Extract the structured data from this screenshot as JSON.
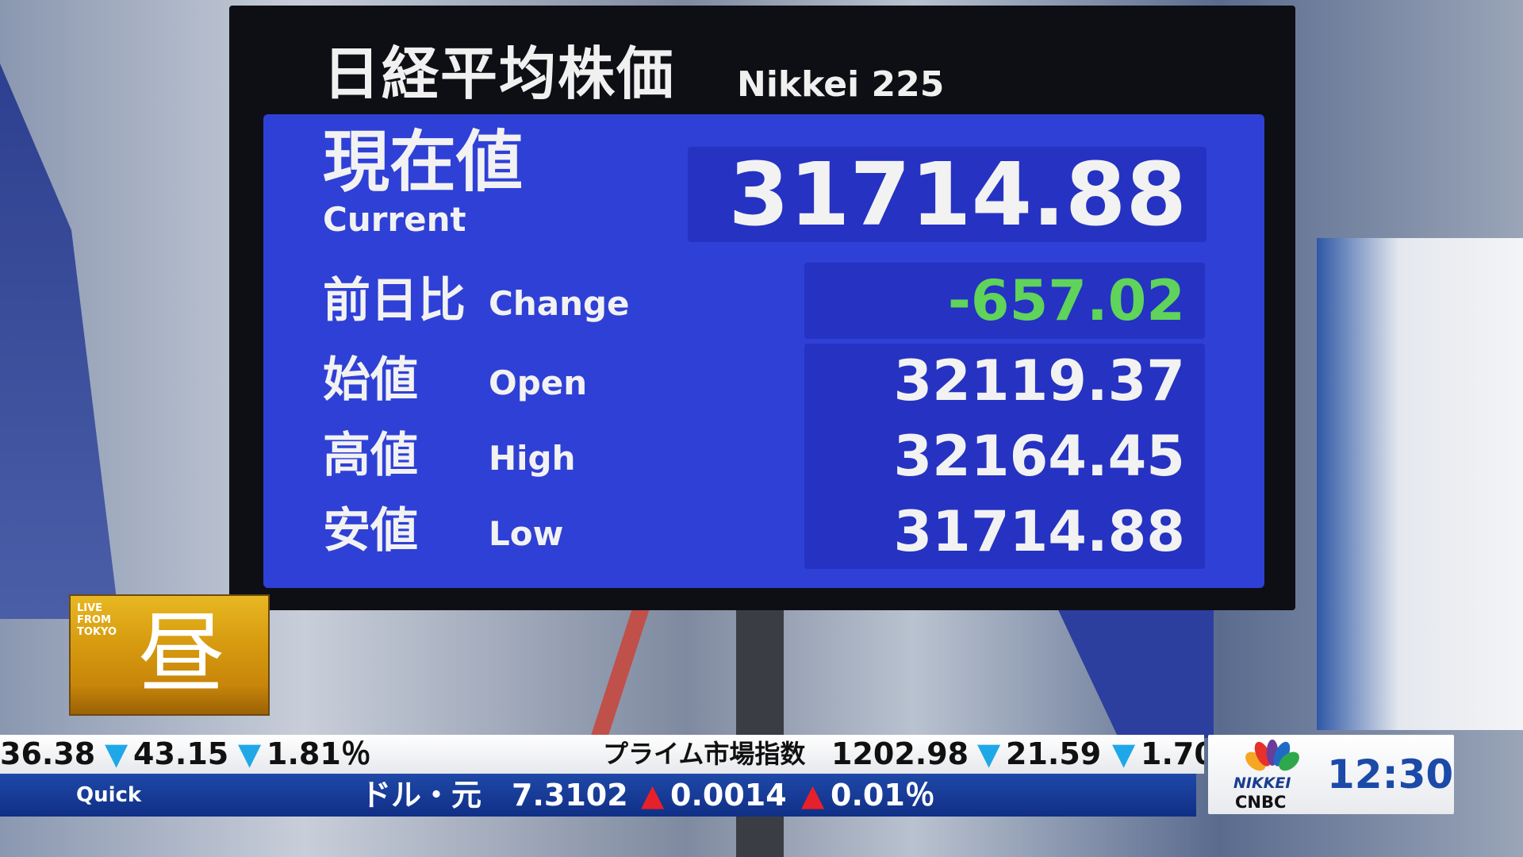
{
  "board": {
    "title_jp": "日経平均株価",
    "title_en": "Nikkei 225",
    "current": {
      "label_jp": "現在値",
      "label_en": "Current",
      "value": "31714.88"
    },
    "change": {
      "label_jp": "前日比",
      "label_en": "Change",
      "value": "-657.02",
      "color": "#5fd35a"
    },
    "open": {
      "label_jp": "始値",
      "label_en": "Open",
      "value": "32119.37"
    },
    "high": {
      "label_jp": "高値",
      "label_en": "High",
      "value": "32164.45"
    },
    "low": {
      "label_jp": "安値",
      "label_en": "Low",
      "value": "31714.88"
    }
  },
  "badge": {
    "live": "LIVE",
    "from": "FROM",
    "tokyo": "TOKYO",
    "kanji": "昼"
  },
  "ticker": {
    "top": [
      {
        "t": "36.38"
      },
      {
        "t": "▼",
        "c": "down"
      },
      {
        "t": "43.15"
      },
      {
        "t": "▼",
        "c": "down"
      },
      {
        "t": "1.81％"
      },
      {
        "t": "プライム市場指数"
      },
      {
        "t": "1202.98"
      },
      {
        "t": "▼",
        "c": "down"
      },
      {
        "t": "21.59"
      },
      {
        "t": "▼",
        "c": "down"
      },
      {
        "t": "1.70"
      }
    ],
    "source": "Quick",
    "pair": "ドル・元",
    "rate": "7.3102",
    "chg": "0.0014",
    "pct": "0.01％"
  },
  "logo": {
    "nikkei": "NIKKEI",
    "cnbc": "CNBC",
    "time": "12:30"
  }
}
